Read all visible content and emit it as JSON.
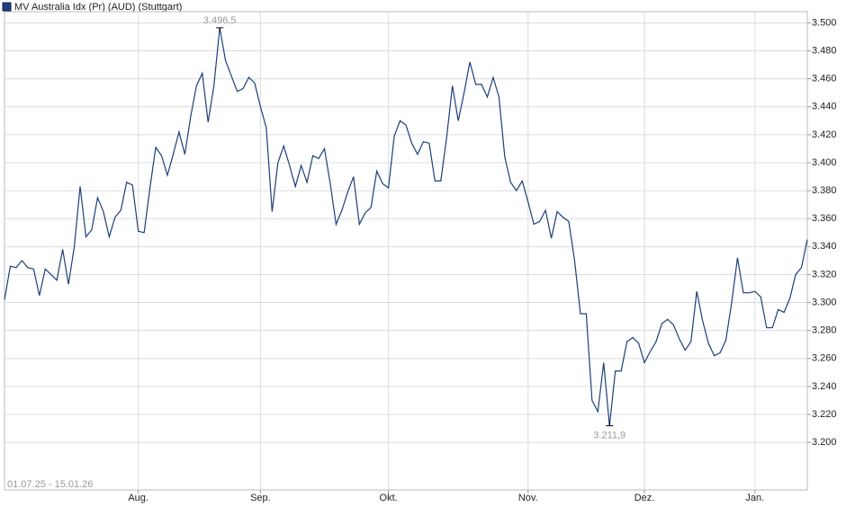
{
  "chart_data": {
    "type": "line",
    "title": "MV Australia Idx (Pr) (AUD) (Stuttgart)",
    "date_range": "01.07.25 - 15.01.26",
    "series": [
      {
        "name": "MV Australia Idx (Pr) (AUD) (Stuttgart)",
        "color": "#1c3f7a",
        "values": [
          3302,
          3326,
          3325,
          3330,
          3325,
          3324,
          3305,
          3324,
          3320,
          3316,
          3338,
          3313,
          3340,
          3383,
          3347,
          3352,
          3375,
          3365,
          3347,
          3361,
          3366,
          3386,
          3384,
          3351,
          3350,
          3382,
          3411,
          3405,
          3391,
          3406,
          3422,
          3406,
          3433,
          3455,
          3464,
          3429,
          3455,
          3496.5,
          3473,
          3462,
          3451,
          3453,
          3461,
          3457,
          3440,
          3425,
          3365,
          3400,
          3412,
          3398,
          3383,
          3398,
          3386,
          3405,
          3403,
          3410,
          3385,
          3356,
          3366,
          3379,
          3390,
          3356,
          3364,
          3368,
          3394,
          3385,
          3382,
          3419,
          3430,
          3427,
          3414,
          3406,
          3415,
          3414,
          3387,
          3387,
          3418,
          3455,
          3430,
          3450,
          3472,
          3456,
          3456,
          3447,
          3461,
          3447,
          3404,
          3386,
          3380,
          3387,
          3372,
          3356,
          3358,
          3366,
          3346,
          3365,
          3361,
          3358,
          3330,
          3292,
          3292,
          3230,
          3222,
          3257,
          3211.9,
          3251,
          3251,
          3272,
          3275,
          3271,
          3257,
          3265,
          3272,
          3285,
          3288,
          3284,
          3274,
          3266,
          3272,
          3308,
          3287,
          3271,
          3262,
          3264,
          3273,
          3300,
          3332,
          3307,
          3307,
          3308,
          3304,
          3282,
          3282,
          3295,
          3293,
          3303,
          3320,
          3325,
          3345
        ]
      }
    ],
    "max_label": "3.496,5",
    "min_label": "3.211,9",
    "xlim": [
      0,
      138
    ],
    "xticks": [
      {
        "value": 23,
        "label": "Aug."
      },
      {
        "value": 44,
        "label": "Sep."
      },
      {
        "value": 66,
        "label": "Okt."
      },
      {
        "value": 90,
        "label": "Nov."
      },
      {
        "value": 110,
        "label": "Dez."
      },
      {
        "value": 129,
        "label": "Jan."
      }
    ],
    "ylim": [
      3166,
      3508
    ],
    "yticks": [
      {
        "value": 3200,
        "label": "3.200"
      },
      {
        "value": 3220,
        "label": "3.220"
      },
      {
        "value": 3240,
        "label": "3.240"
      },
      {
        "value": 3260,
        "label": "3.260"
      },
      {
        "value": 3280,
        "label": "3.280"
      },
      {
        "value": 3300,
        "label": "3.300"
      },
      {
        "value": 3320,
        "label": "3.320"
      },
      {
        "value": 3340,
        "label": "3.340"
      },
      {
        "value": 3360,
        "label": "3.360"
      },
      {
        "value": 3380,
        "label": "3.380"
      },
      {
        "value": 3400,
        "label": "3.400"
      },
      {
        "value": 3420,
        "label": "3.420"
      },
      {
        "value": 3440,
        "label": "3.440"
      },
      {
        "value": 3460,
        "label": "3.460"
      },
      {
        "value": 3480,
        "label": "3.480"
      },
      {
        "value": 3500,
        "label": "3.500"
      }
    ],
    "grid": true
  }
}
